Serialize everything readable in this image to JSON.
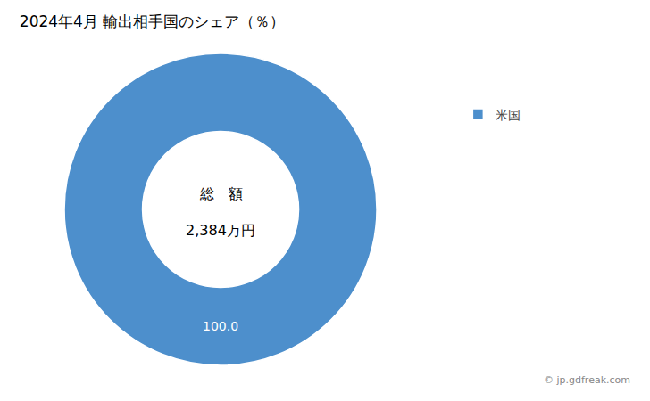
{
  "chart_data": {
    "type": "donut",
    "title": "2024年4月 輸出相手国のシェア（％）",
    "categories": [
      "米国"
    ],
    "values": [
      100.0
    ],
    "value_labels": [
      "100.0"
    ],
    "colors": [
      "#4d8fcc"
    ],
    "data_labels": true,
    "legend": "upper right",
    "center_text": [
      "総　額",
      "2,384万円"
    ],
    "annotations": [
      "© jp.gdfreak.com"
    ]
  }
}
